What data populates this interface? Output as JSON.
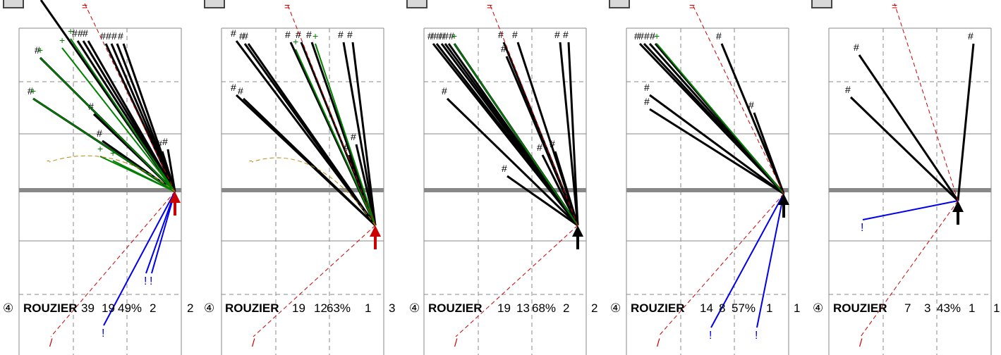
{
  "colors": {
    "line_black": "#000000",
    "line_green": "#008000",
    "line_red": "#cc0000",
    "line_blue": "#0000ee",
    "dash_gold": "#b8860b",
    "dash_red": "#cc0000",
    "bar_grey": "#888888",
    "grid": "#888888"
  },
  "panels": [
    {
      "circle": "④",
      "player": "ROUZIER",
      "stat1": "39",
      "stat2": "19",
      "pct": "49%",
      "stat3": "2",
      "stat4": "2",
      "arrow": "red"
    },
    {
      "circle": "④",
      "player": "ROUZIER",
      "stat1": "19",
      "stat2": "12",
      "pct": "63%",
      "stat3": "1",
      "stat4": "3",
      "arrow": "red"
    },
    {
      "circle": "④",
      "player": "ROUZIER",
      "stat1": "19",
      "stat2": "13",
      "pct": "68%",
      "stat3": "2",
      "stat4": "2",
      "arrow": "black"
    },
    {
      "circle": "④",
      "player": "ROUZIER",
      "stat1": "14",
      "stat2": "8",
      "pct": "57%",
      "stat3": "1",
      "stat4": "1",
      "arrow": "black"
    },
    {
      "circle": "④",
      "player": "ROUZIER",
      "stat1": "7",
      "stat2": "3",
      "pct": "43%",
      "stat3": "1",
      "stat4": "1",
      "arrow": "black"
    }
  ],
  "chart_data": {
    "type": "scatter",
    "description_markers": [
      "#",
      "+",
      "-",
      "=",
      "!",
      "/"
    ],
    "panels": [
      {
        "total": 39,
        "made": 19,
        "pct": "49%",
        "a": 2,
        "b": 2
      },
      {
        "total": 19,
        "made": 12,
        "pct": "63%",
        "a": 1,
        "b": 3
      },
      {
        "total": 19,
        "made": 13,
        "pct": "68%",
        "a": 2,
        "b": 2
      },
      {
        "total": 14,
        "made": 8,
        "pct": "57%",
        "a": 1,
        "b": 1
      },
      {
        "total": 7,
        "made": 3,
        "pct": "43%",
        "a": 1,
        "b": 1
      }
    ]
  }
}
